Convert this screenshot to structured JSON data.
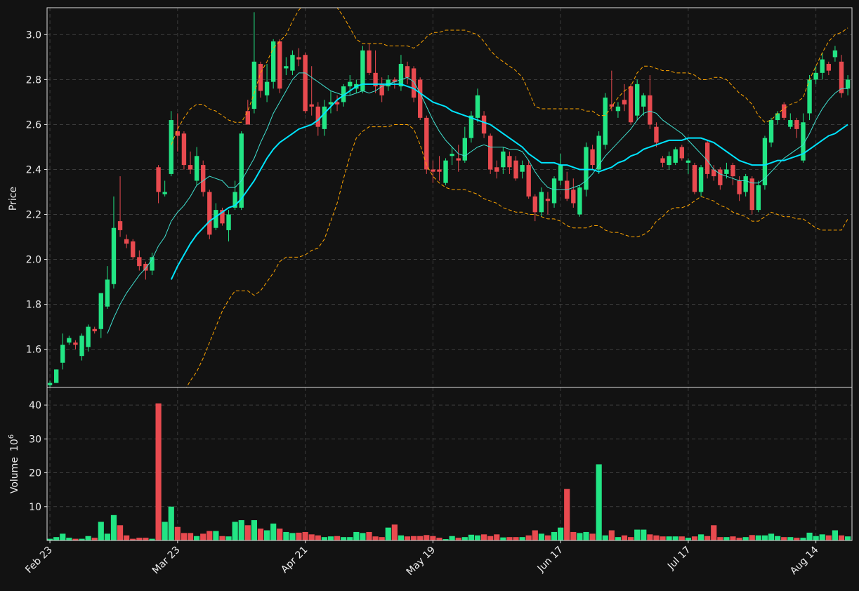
{
  "chart_data": {
    "type": "candlestick",
    "ylabel": "Price",
    "categories": [
      "Feb 23",
      null,
      null,
      null,
      null,
      null,
      null,
      null,
      null,
      null,
      null,
      null,
      null,
      null,
      null,
      null,
      null,
      null,
      null,
      null,
      "Mar 23",
      null,
      null,
      null,
      null,
      null,
      null,
      null,
      null,
      null,
      null,
      null,
      null,
      null,
      null,
      null,
      null,
      null,
      null,
      null,
      "Apr 21",
      null,
      null,
      null,
      null,
      null,
      null,
      null,
      null,
      null,
      null,
      null,
      null,
      null,
      null,
      null,
      null,
      null,
      null,
      null,
      "May 19",
      null,
      null,
      null,
      null,
      null,
      null,
      null,
      null,
      null,
      null,
      null,
      null,
      null,
      null,
      null,
      null,
      null,
      null,
      null,
      "Jun 17",
      null,
      null,
      null,
      null,
      null,
      null,
      null,
      null,
      null,
      null,
      null,
      null,
      null,
      null,
      null,
      null,
      null,
      null,
      null,
      "Jul 17",
      null,
      null,
      null,
      null,
      null,
      null,
      null,
      null,
      null,
      null,
      null,
      null,
      null,
      null,
      null,
      null,
      null,
      null,
      null,
      "Aug 14",
      null,
      null,
      null,
      null,
      null
    ],
    "open": [
      1.44,
      1.45,
      1.54,
      1.63,
      1.63,
      1.57,
      1.61,
      1.69,
      1.69,
      1.79,
      1.89,
      2.17,
      2.09,
      2.08,
      2.01,
      1.98,
      1.95,
      2.41,
      2.29,
      2.38,
      2.57,
      2.56,
      2.42,
      2.35,
      2.42,
      2.3,
      2.14,
      2.22,
      2.13,
      2.23,
      2.23,
      2.66,
      2.67,
      2.87,
      2.73,
      2.79,
      2.97,
      2.85,
      2.84,
      2.9,
      2.91,
      2.69,
      2.68,
      2.58,
      2.69,
      2.7,
      2.7,
      2.77,
      2.76,
      2.75,
      2.93,
      2.83,
      2.78,
      2.77,
      2.8,
      2.77,
      2.86,
      2.85,
      2.8,
      2.63,
      2.4,
      2.4,
      2.34,
      2.46,
      2.45,
      2.44,
      2.54,
      2.63,
      2.64,
      2.55,
      2.41,
      2.41,
      2.46,
      2.44,
      2.39,
      2.42,
      2.28,
      2.21,
      2.27,
      2.25,
      2.35,
      2.35,
      2.31,
      2.2,
      2.31,
      2.49,
      2.4,
      2.51,
      2.69,
      2.66,
      2.71,
      2.77,
      2.64,
      2.68,
      2.73,
      2.59,
      2.45,
      2.42,
      2.43,
      2.5,
      2.43,
      2.42,
      2.3,
      2.52,
      2.4,
      2.4,
      2.38,
      2.42,
      2.35,
      2.3,
      2.36,
      2.22,
      2.33,
      2.52,
      2.62,
      2.69,
      2.59,
      2.62,
      2.44,
      2.65,
      2.8,
      2.83,
      2.87,
      2.9,
      2.88,
      2.76
    ],
    "high": [
      1.46,
      1.51,
      1.67,
      1.66,
      1.64,
      1.67,
      1.71,
      1.7,
      1.85,
      1.97,
      2.28,
      2.37,
      2.11,
      2.09,
      2.04,
      1.99,
      2.03,
      2.42,
      2.35,
      2.66,
      2.65,
      2.57,
      2.48,
      2.5,
      2.44,
      2.31,
      2.25,
      2.23,
      2.22,
      2.35,
      2.57,
      2.71,
      3.1,
      2.88,
      2.87,
      2.98,
      2.98,
      2.9,
      2.93,
      2.94,
      2.92,
      2.86,
      2.7,
      2.71,
      2.75,
      2.73,
      2.78,
      2.82,
      2.8,
      2.95,
      2.96,
      2.93,
      2.81,
      2.82,
      2.81,
      2.91,
      2.88,
      2.86,
      2.81,
      2.64,
      2.44,
      2.46,
      2.45,
      2.5,
      2.51,
      2.59,
      2.66,
      2.76,
      2.66,
      2.56,
      2.44,
      2.5,
      2.48,
      2.46,
      2.44,
      2.44,
      2.29,
      2.32,
      2.3,
      2.37,
      2.47,
      2.39,
      2.36,
      2.33,
      2.52,
      2.51,
      2.57,
      2.74,
      2.84,
      2.7,
      2.78,
      2.78,
      2.8,
      2.74,
      2.82,
      2.61,
      2.46,
      2.48,
      2.5,
      2.51,
      2.45,
      2.43,
      2.42,
      2.53,
      2.42,
      2.41,
      2.43,
      2.43,
      2.37,
      2.38,
      2.37,
      2.35,
      2.55,
      2.63,
      2.66,
      2.7,
      2.65,
      2.63,
      2.65,
      2.82,
      2.86,
      2.92,
      2.88,
      2.95,
      2.91,
      2.82
    ],
    "low": [
      1.43,
      1.45,
      1.51,
      1.62,
      1.6,
      1.55,
      1.59,
      1.67,
      1.65,
      1.78,
      1.87,
      2.1,
      2.05,
      2.0,
      1.95,
      1.91,
      1.93,
      2.25,
      2.28,
      2.37,
      2.48,
      2.4,
      2.38,
      2.33,
      2.28,
      2.09,
      2.13,
      2.15,
      2.08,
      2.22,
      2.22,
      2.6,
      2.65,
      2.72,
      2.7,
      2.76,
      2.74,
      2.82,
      2.82,
      2.86,
      2.65,
      2.64,
      2.55,
      2.55,
      2.65,
      2.66,
      2.68,
      2.73,
      2.74,
      2.74,
      2.82,
      2.74,
      2.7,
      2.75,
      2.76,
      2.75,
      2.78,
      2.7,
      2.62,
      2.38,
      2.34,
      2.35,
      2.33,
      2.42,
      2.39,
      2.43,
      2.52,
      2.61,
      2.54,
      2.38,
      2.36,
      2.38,
      2.38,
      2.35,
      2.36,
      2.27,
      2.17,
      2.19,
      2.2,
      2.23,
      2.33,
      2.26,
      2.23,
      2.19,
      2.28,
      2.4,
      2.38,
      2.49,
      2.66,
      2.63,
      2.66,
      2.6,
      2.62,
      2.64,
      2.58,
      2.5,
      2.41,
      2.4,
      2.42,
      2.44,
      2.38,
      2.29,
      2.28,
      2.36,
      2.35,
      2.31,
      2.36,
      2.33,
      2.26,
      2.28,
      2.2,
      2.21,
      2.31,
      2.5,
      2.6,
      2.62,
      2.58,
      2.54,
      2.43,
      2.62,
      2.78,
      2.8,
      2.82,
      2.88,
      2.72,
      2.73
    ],
    "close": [
      1.45,
      1.51,
      1.62,
      1.65,
      1.62,
      1.66,
      1.7,
      1.68,
      1.85,
      1.91,
      2.14,
      2.13,
      2.07,
      2.01,
      1.97,
      1.95,
      2.01,
      2.3,
      2.3,
      2.62,
      2.55,
      2.42,
      2.4,
      2.46,
      2.3,
      2.11,
      2.22,
      2.16,
      2.2,
      2.3,
      2.56,
      2.6,
      2.88,
      2.75,
      2.79,
      2.97,
      2.76,
      2.86,
      2.91,
      2.89,
      2.66,
      2.68,
      2.59,
      2.68,
      2.7,
      2.69,
      2.77,
      2.79,
      2.78,
      2.93,
      2.83,
      2.77,
      2.73,
      2.8,
      2.79,
      2.87,
      2.81,
      2.72,
      2.63,
      2.4,
      2.39,
      2.39,
      2.44,
      2.47,
      2.44,
      2.54,
      2.64,
      2.73,
      2.56,
      2.4,
      2.39,
      2.48,
      2.41,
      2.36,
      2.42,
      2.28,
      2.21,
      2.3,
      2.26,
      2.36,
      2.42,
      2.27,
      2.25,
      2.32,
      2.5,
      2.42,
      2.55,
      2.72,
      2.68,
      2.68,
      2.69,
      2.61,
      2.78,
      2.73,
      2.6,
      2.52,
      2.43,
      2.46,
      2.49,
      2.45,
      2.44,
      2.3,
      2.41,
      2.38,
      2.37,
      2.33,
      2.4,
      2.37,
      2.29,
      2.37,
      2.22,
      2.33,
      2.54,
      2.62,
      2.65,
      2.63,
      2.62,
      2.58,
      2.61,
      2.8,
      2.83,
      2.89,
      2.84,
      2.93,
      2.74,
      2.8
    ],
    "up_color": "#22e584",
    "down_color": "#e84a4f",
    "overlays": [
      {
        "color": "#40e0d0",
        "style": "solid",
        "weight": "thin",
        "values": [
          null,
          null,
          null,
          null,
          null,
          null,
          null,
          null,
          null,
          1.67,
          1.74,
          1.8,
          1.85,
          1.89,
          1.93,
          1.96,
          2.0,
          2.06,
          2.1,
          2.17,
          2.21,
          2.24,
          2.28,
          2.33,
          2.35,
          2.37,
          2.36,
          2.35,
          2.32,
          2.32,
          2.35,
          2.4,
          2.45,
          2.52,
          2.58,
          2.65,
          2.7,
          2.75,
          2.8,
          2.83,
          2.83,
          2.81,
          2.79,
          2.77,
          2.75,
          2.74,
          2.73,
          2.73,
          2.74,
          2.75,
          2.74,
          2.75,
          2.77,
          2.78,
          2.79,
          2.8,
          2.81,
          2.79,
          2.74,
          2.68,
          2.62,
          2.57,
          2.53,
          2.5,
          2.47,
          2.46,
          2.48,
          2.5,
          2.51,
          2.5,
          2.5,
          2.5,
          2.49,
          2.49,
          2.48,
          2.44,
          2.39,
          2.35,
          2.32,
          2.31,
          2.31,
          2.31,
          2.32,
          2.33,
          2.35,
          2.38,
          2.42,
          2.46,
          2.49,
          2.52,
          2.55,
          2.58,
          2.62,
          2.65,
          2.66,
          2.65,
          2.62,
          2.6,
          2.58,
          2.56,
          2.53,
          2.5,
          2.47,
          2.44,
          2.4,
          2.38,
          2.37,
          2.36,
          2.35,
          2.35,
          2.34,
          2.34,
          2.36,
          2.39,
          2.42,
          2.45,
          2.47,
          2.49,
          2.51,
          2.56,
          2.62,
          2.67,
          2.71,
          2.74,
          2.76,
          2.76
        ]
      },
      {
        "color": "#00e5ff",
        "style": "solid",
        "weight": "bold",
        "values": [
          null,
          null,
          null,
          null,
          null,
          null,
          null,
          null,
          null,
          null,
          null,
          null,
          null,
          null,
          null,
          null,
          null,
          null,
          null,
          1.91,
          1.97,
          2.02,
          2.07,
          2.11,
          2.14,
          2.17,
          2.19,
          2.21,
          2.23,
          2.24,
          2.27,
          2.31,
          2.35,
          2.4,
          2.45,
          2.49,
          2.52,
          2.54,
          2.56,
          2.58,
          2.59,
          2.6,
          2.62,
          2.65,
          2.68,
          2.71,
          2.73,
          2.75,
          2.77,
          2.78,
          2.78,
          2.78,
          2.78,
          2.78,
          2.78,
          2.78,
          2.77,
          2.76,
          2.74,
          2.72,
          2.7,
          2.69,
          2.68,
          2.66,
          2.65,
          2.64,
          2.63,
          2.62,
          2.61,
          2.6,
          2.58,
          2.56,
          2.54,
          2.52,
          2.5,
          2.47,
          2.45,
          2.43,
          2.43,
          2.43,
          2.42,
          2.42,
          2.41,
          2.4,
          2.4,
          2.4,
          2.39,
          2.4,
          2.41,
          2.43,
          2.44,
          2.46,
          2.47,
          2.49,
          2.5,
          2.51,
          2.52,
          2.53,
          2.53,
          2.53,
          2.54,
          2.54,
          2.54,
          2.53,
          2.52,
          2.5,
          2.48,
          2.46,
          2.44,
          2.43,
          2.42,
          2.42,
          2.42,
          2.43,
          2.44,
          2.44,
          2.45,
          2.46,
          2.47,
          2.49,
          2.51,
          2.53,
          2.55,
          2.56,
          2.58,
          2.6
        ]
      },
      {
        "color": "#ffa500",
        "style": "dashed",
        "weight": "thin",
        "values": [
          null,
          null,
          null,
          null,
          null,
          null,
          null,
          null,
          null,
          null,
          null,
          null,
          null,
          null,
          null,
          null,
          null,
          null,
          null,
          2.51,
          2.58,
          2.63,
          2.67,
          2.69,
          2.69,
          2.67,
          2.66,
          2.64,
          2.62,
          2.61,
          2.61,
          2.66,
          2.74,
          2.83,
          2.88,
          2.94,
          2.97,
          3.0,
          3.06,
          3.11,
          3.14,
          3.16,
          3.16,
          3.15,
          3.14,
          3.12,
          3.08,
          3.03,
          2.98,
          2.96,
          2.96,
          2.96,
          2.96,
          2.95,
          2.95,
          2.95,
          2.95,
          2.94,
          2.96,
          2.99,
          3.01,
          3.01,
          3.02,
          3.02,
          3.02,
          3.02,
          3.01,
          3.0,
          2.97,
          2.93,
          2.9,
          2.88,
          2.86,
          2.84,
          2.81,
          2.75,
          2.68,
          2.67,
          2.67,
          2.67,
          2.67,
          2.67,
          2.67,
          2.67,
          2.66,
          2.66,
          2.64,
          2.64,
          2.68,
          2.72,
          2.75,
          2.77,
          2.83,
          2.86,
          2.86,
          2.85,
          2.84,
          2.84,
          2.83,
          2.83,
          2.83,
          2.82,
          2.8,
          2.8,
          2.81,
          2.81,
          2.8,
          2.77,
          2.74,
          2.72,
          2.69,
          2.64,
          2.61,
          2.62,
          2.65,
          2.67,
          2.69,
          2.7,
          2.72,
          2.8,
          2.86,
          2.92,
          2.97,
          3.0,
          3.01,
          3.03
        ]
      },
      {
        "color": "#ffa500",
        "style": "dashed",
        "weight": "thin",
        "values": [
          null,
          null,
          null,
          null,
          null,
          null,
          null,
          null,
          null,
          null,
          null,
          null,
          null,
          null,
          null,
          null,
          null,
          null,
          null,
          1.31,
          1.36,
          1.41,
          1.46,
          1.5,
          1.56,
          1.63,
          1.7,
          1.77,
          1.82,
          1.86,
          1.86,
          1.86,
          1.84,
          1.86,
          1.9,
          1.94,
          1.99,
          2.01,
          2.01,
          2.01,
          2.02,
          2.04,
          2.05,
          2.09,
          2.17,
          2.25,
          2.36,
          2.46,
          2.54,
          2.57,
          2.59,
          2.59,
          2.59,
          2.59,
          2.6,
          2.6,
          2.6,
          2.58,
          2.51,
          2.42,
          2.37,
          2.34,
          2.32,
          2.31,
          2.31,
          2.31,
          2.3,
          2.29,
          2.27,
          2.26,
          2.25,
          2.23,
          2.22,
          2.21,
          2.21,
          2.2,
          2.2,
          2.19,
          2.18,
          2.18,
          2.17,
          2.15,
          2.14,
          2.14,
          2.14,
          2.15,
          2.15,
          2.13,
          2.12,
          2.12,
          2.11,
          2.1,
          2.1,
          2.11,
          2.13,
          2.17,
          2.19,
          2.22,
          2.23,
          2.23,
          2.24,
          2.26,
          2.28,
          2.27,
          2.26,
          2.24,
          2.23,
          2.21,
          2.2,
          2.19,
          2.17,
          2.17,
          2.19,
          2.21,
          2.2,
          2.19,
          2.19,
          2.18,
          2.18,
          2.16,
          2.14,
          2.13,
          2.13,
          2.13,
          2.13,
          2.18
        ]
      }
    ],
    "ylim": [
      1.43,
      3.12
    ],
    "yticks": [
      1.6,
      1.8,
      {
        "value": 2,
        "label": "2.0"
      },
      2.2,
      2.4,
      2.6,
      2.8,
      {
        "value": 3,
        "label": "3.0"
      }
    ],
    "grid": true,
    "volume": {
      "ylabel": "Volume",
      "scale_base": "10",
      "scale_exponent": "6",
      "values": [
        0.5,
        1,
        2,
        0.8,
        0.5,
        0.5,
        1.3,
        0.8,
        5.5,
        2,
        7.5,
        4.5,
        1.5,
        0.5,
        0.8,
        0.8,
        0.5,
        40.5,
        5.5,
        10,
        4,
        2.2,
        2.2,
        1.3,
        2,
        2.8,
        2.8,
        1.3,
        1.2,
        5.5,
        6,
        4.5,
        6,
        3.5,
        3,
        5,
        3.5,
        2.5,
        2.2,
        2.3,
        2.5,
        1.8,
        1.5,
        1,
        1.2,
        1.3,
        1,
        1,
        2.5,
        2.2,
        2.5,
        1.2,
        1,
        3.8,
        4.7,
        1.5,
        1.2,
        1.3,
        1.3,
        1.6,
        1.3,
        0.8,
        0.4,
        1.3,
        0.8,
        1,
        1.7,
        1.5,
        1.8,
        1.3,
        1.8,
        0.9,
        1,
        1,
        1,
        1.5,
        3,
        2,
        1.5,
        2.5,
        3.8,
        15.2,
        2.5,
        2.2,
        2.5,
        2,
        22.5,
        1.5,
        3,
        1,
        1.5,
        1,
        3.2,
        3.2,
        1.8,
        1.5,
        1.2,
        1.2,
        1.2,
        1.2,
        0.8,
        1.2,
        1.8,
        1.3,
        4.5,
        1,
        1,
        1.2,
        0.8,
        1,
        1.6,
        1.5,
        1.5,
        2,
        1.3,
        1,
        1,
        0.8,
        0.8,
        2.3,
        1.3,
        1.8,
        1.5,
        3,
        1.5,
        1.2
      ],
      "ylim": [
        0,
        45.2
      ],
      "yticks": [
        10,
        20,
        30,
        40
      ]
    }
  }
}
